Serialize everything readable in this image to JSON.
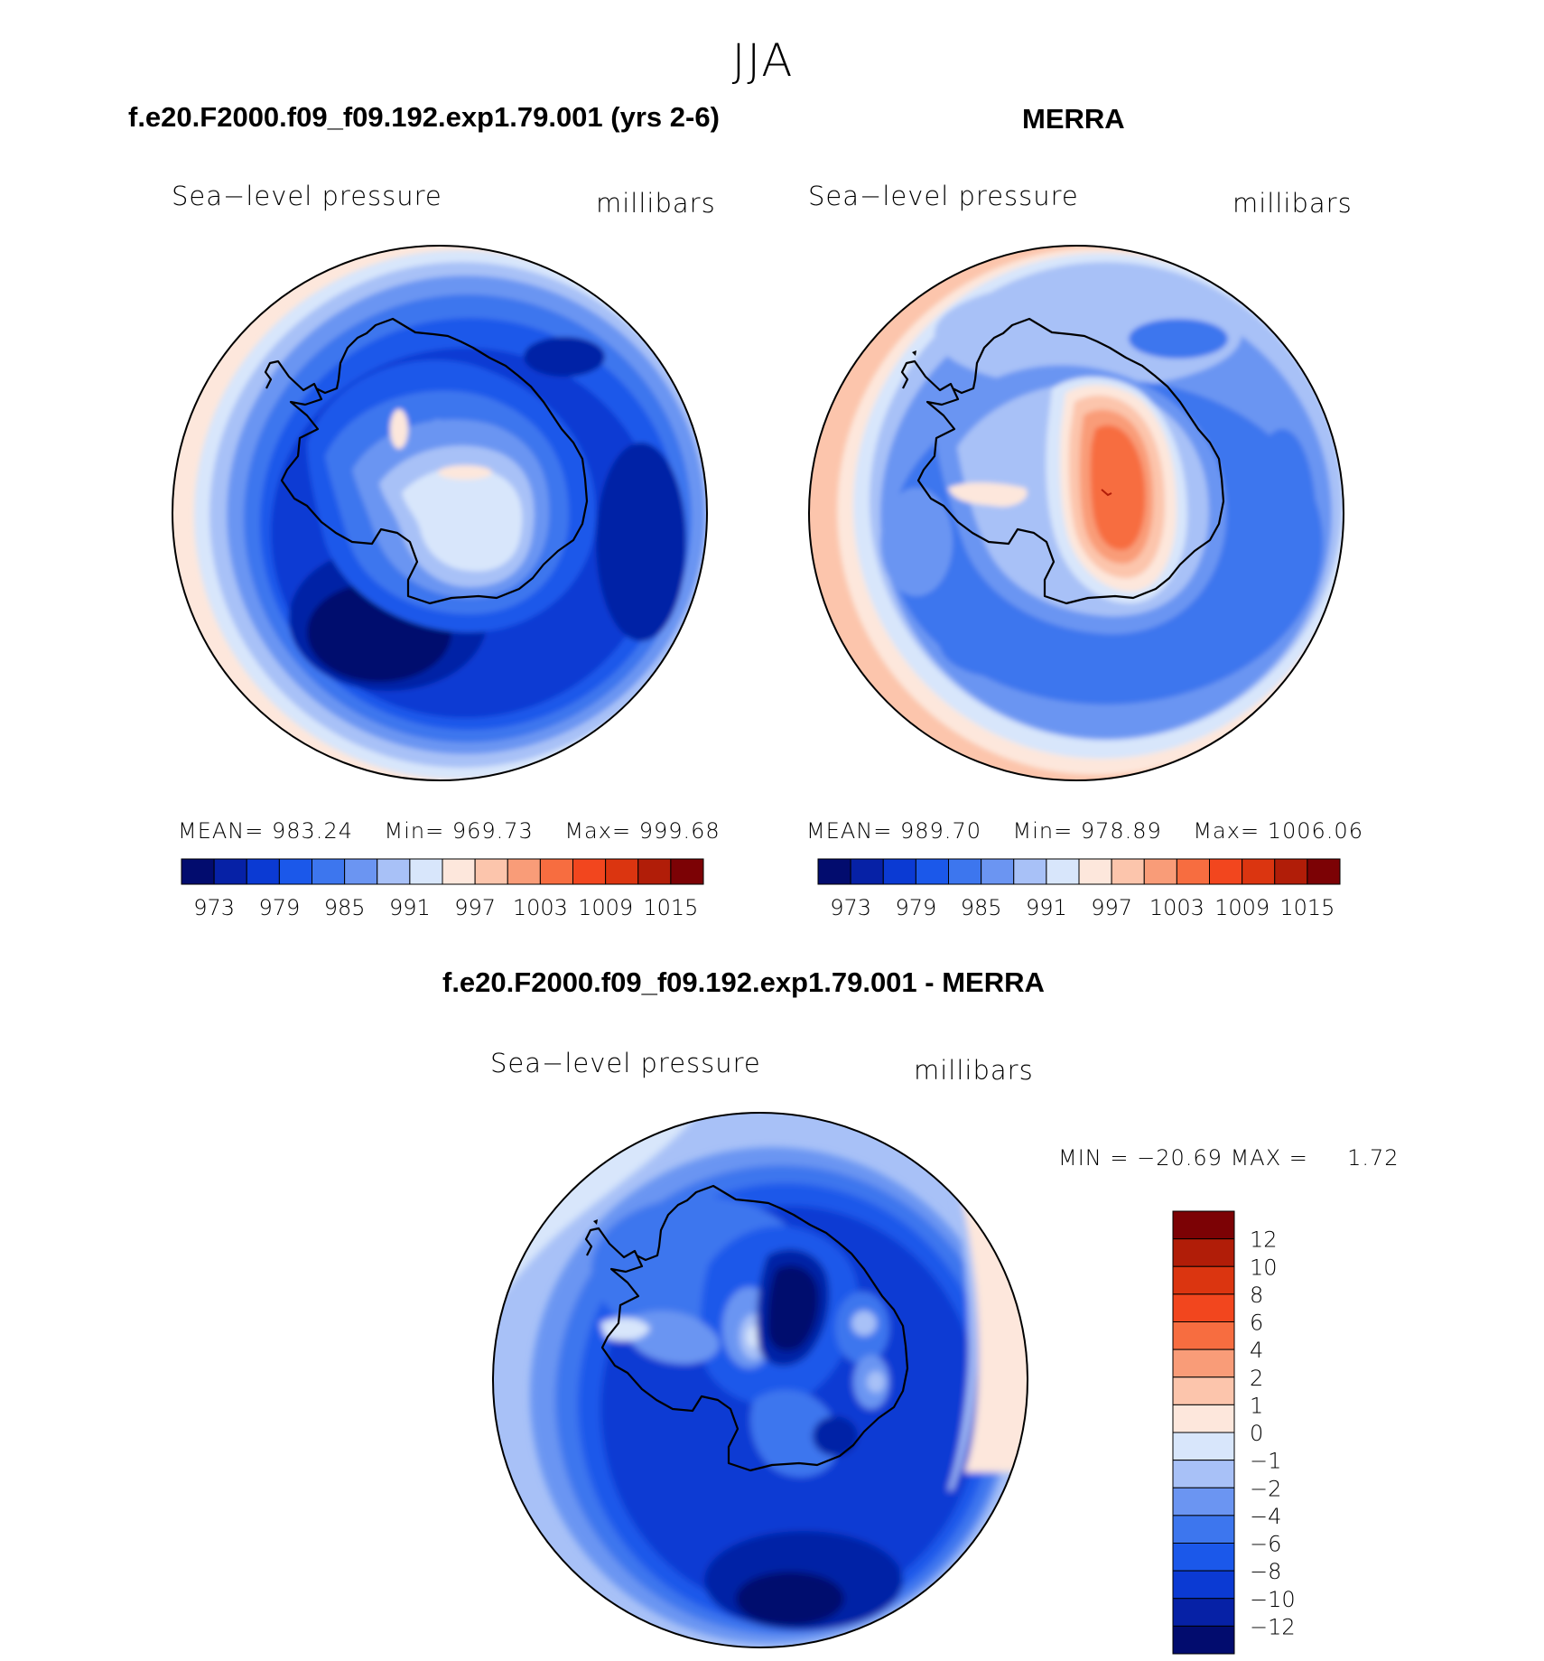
{
  "season": "JJA",
  "panels": [
    {
      "case_title": "f.e20.F2000.f09_f09.192.exp1.79.001 (yrs 2-6)",
      "field": "Sea−level pressure",
      "units": "millibars",
      "mean_label": "MEAN=",
      "mean": "983.24",
      "min_label": "Min=",
      "min": "969.73",
      "max_label": "Max=",
      "max": "999.68",
      "colorbar_ticks": [
        "973",
        "979",
        "985",
        "991",
        "997",
        "1003",
        "1009",
        "1015"
      ]
    },
    {
      "case_title": "MERRA",
      "field": "Sea−level pressure",
      "units": "millibars",
      "mean_label": "MEAN=",
      "mean": "989.70",
      "min_label": "Min=",
      "min": "978.89",
      "max_label": "Max=",
      "max": "1006.06",
      "colorbar_ticks": [
        "973",
        "979",
        "985",
        "991",
        "997",
        "1003",
        "1009",
        "1015"
      ]
    }
  ],
  "difference": {
    "case_title": "f.e20.F2000.f09_f09.192.exp1.79.001 - MERRA",
    "field": "Sea−level pressure",
    "units": "millibars",
    "min_label": "MIN =",
    "min": "−20.69",
    "max_label": "MAX =",
    "max": "1.72",
    "colorbar_ticks": [
      "12",
      "10",
      "8",
      "6",
      "4",
      "2",
      "1",
      "0",
      "−1",
      "−2",
      "−4",
      "−6",
      "−8",
      "−10",
      "−12"
    ]
  },
  "palette_abs": [
    "#020c6e",
    "#0621a6",
    "#0b3ad3",
    "#1b58ea",
    "#3d76ee",
    "#6b95f2",
    "#a8c1f7",
    "#d8e6fb",
    "#fde7dc",
    "#fcc5ac",
    "#f99c78",
    "#f76d40",
    "#f2461e",
    "#db3510",
    "#b11d08",
    "#7c0205"
  ],
  "palette_diff": [
    "#020c6e",
    "#0621a6",
    "#0b3ad3",
    "#1b58ea",
    "#3d76ee",
    "#6b95f2",
    "#a8c1f7",
    "#d8e6fb",
    "#fde7dc",
    "#fcc5ac",
    "#f99c78",
    "#f76d40",
    "#f2461e",
    "#db3510",
    "#b11d08",
    "#7c0205"
  ]
}
